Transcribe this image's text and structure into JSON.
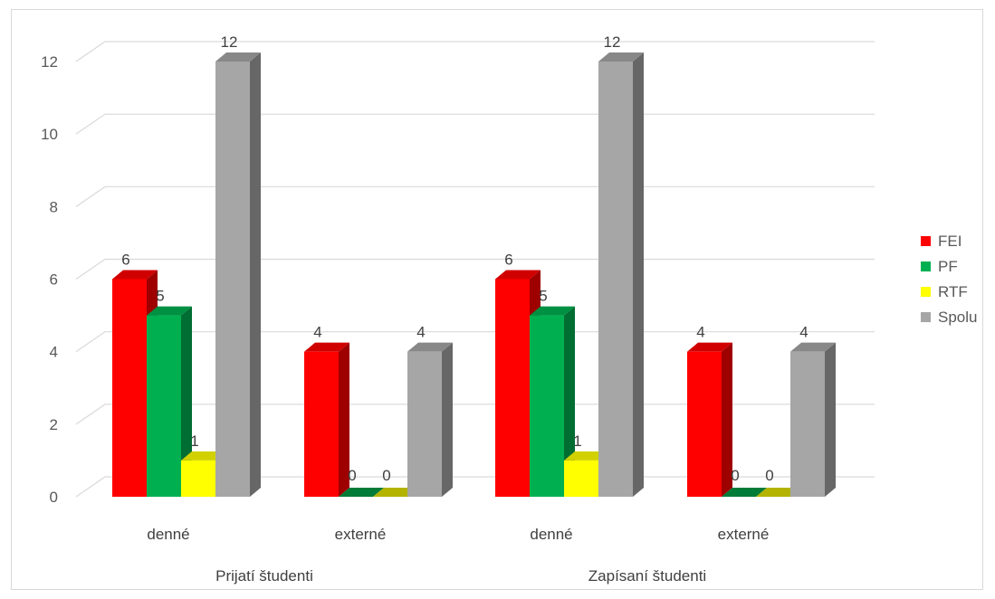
{
  "chart_data": {
    "type": "bar",
    "style": "3d-clustered-column",
    "groups": [
      {
        "label": "Prijatí študenti",
        "categories": [
          "denné",
          "externé"
        ]
      },
      {
        "label": "Zapísaní študenti",
        "categories": [
          "denné",
          "externé"
        ]
      }
    ],
    "categories": [
      "denné",
      "externé",
      "denné",
      "externé"
    ],
    "series": [
      {
        "name": "FEI",
        "color": "#ff0000",
        "values": [
          6,
          4,
          6,
          4
        ]
      },
      {
        "name": "PF",
        "color": "#00b050",
        "values": [
          5,
          0,
          5,
          0
        ]
      },
      {
        "name": "RTF",
        "color": "#ffff00",
        "values": [
          1,
          0,
          1,
          0
        ]
      },
      {
        "name": "Spolu",
        "color": "#a6a6a6",
        "values": [
          12,
          4,
          12,
          4
        ]
      }
    ],
    "y_ticks": [
      "0",
      "2",
      "4",
      "6",
      "8",
      "10",
      "12"
    ],
    "ylim": [
      0,
      12
    ],
    "grid": true,
    "legend": "right",
    "data_labels": true
  }
}
